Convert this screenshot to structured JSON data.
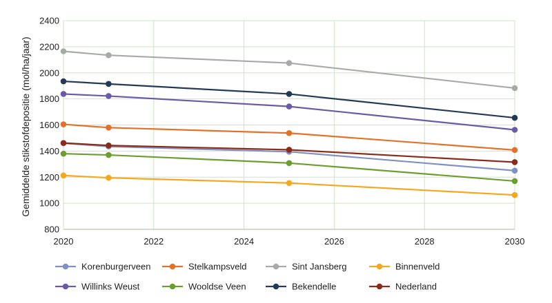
{
  "chart_data": {
    "type": "line",
    "title": "",
    "xlabel": "",
    "ylabel": "Gemiddelde stikstofdepositie (mol/ha/jaar)",
    "xlim": [
      2020,
      2030
    ],
    "ylim": [
      800,
      2400
    ],
    "x_ticks": [
      "2020",
      "2022",
      "2024",
      "2026",
      "2028",
      "2030"
    ],
    "y_ticks": [
      "800",
      "1000",
      "1200",
      "1400",
      "1600",
      "1800",
      "2000",
      "2200",
      "2400"
    ],
    "grid": true,
    "legend_position": "bottom",
    "series": [
      {
        "name": "Korenburgerveen",
        "color": "#7f91c2",
        "x": [
          2020,
          2021,
          2025,
          2030
        ],
        "values": [
          1460,
          1435,
          1395,
          1250
        ]
      },
      {
        "name": "Stelkampsveld",
        "color": "#e37228",
        "x": [
          2020,
          2021,
          2025,
          2030
        ],
        "values": [
          1605,
          1580,
          1538,
          1408
        ]
      },
      {
        "name": "Sint Jansberg",
        "color": "#a8aaa8",
        "x": [
          2020,
          2021,
          2025,
          2030
        ],
        "values": [
          2165,
          2135,
          2075,
          1883
        ]
      },
      {
        "name": "Binnenveld",
        "color": "#f5a81f",
        "x": [
          2020,
          2021,
          2025,
          2030
        ],
        "values": [
          1213,
          1195,
          1155,
          1063
        ]
      },
      {
        "name": "Willinks Weust",
        "color": "#6b5aa5",
        "x": [
          2020,
          2021,
          2025,
          2030
        ],
        "values": [
          1838,
          1822,
          1742,
          1563
        ]
      },
      {
        "name": "Wooldse Veen",
        "color": "#6c9e2f",
        "x": [
          2020,
          2021,
          2025,
          2030
        ],
        "values": [
          1380,
          1370,
          1308,
          1170
        ]
      },
      {
        "name": "Bekendelle",
        "color": "#223a55",
        "x": [
          2020,
          2021,
          2025,
          2030
        ],
        "values": [
          1935,
          1915,
          1838,
          1655
        ]
      },
      {
        "name": "Nederland",
        "color": "#8b2c1b",
        "x": [
          2020,
          2021,
          2025,
          2030
        ],
        "values": [
          1462,
          1443,
          1410,
          1315
        ]
      }
    ]
  }
}
